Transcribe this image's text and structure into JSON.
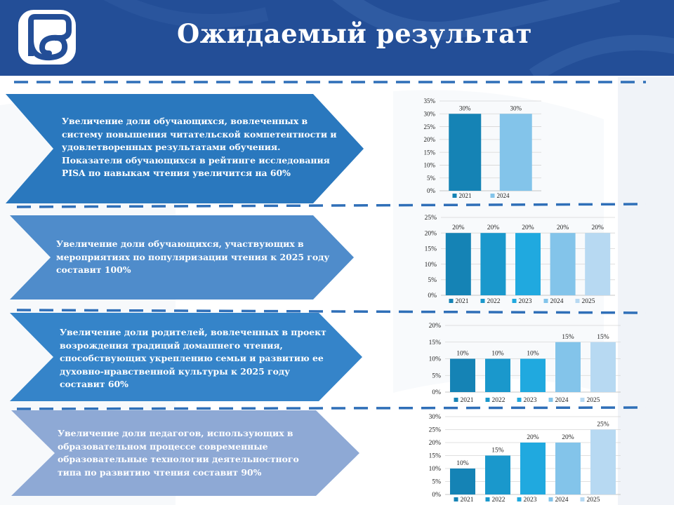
{
  "header": {
    "title": "Ожидаемый результат"
  },
  "colors": {
    "header_bg": "#234e97",
    "dashes": "#2f6fb8",
    "arrow1": "#2a78be",
    "arrow2": "#4f8ccb",
    "arrow3": "#3584c9",
    "arrow4": "#8ea9d5",
    "year_2021": "#1583b5",
    "year_2022": "#1a98cc",
    "year_2023": "#20a9df",
    "year_2024": "#83c4ea",
    "year_2025": "#b7d9f2"
  },
  "results": [
    {
      "text": "Увеличение доли обучающихся,  вовлеченных в систему повышения читательской компетентности и удовлетворенных результатами обучения. Показатели обучающихся  в рейтинге исследования PISA по навыкам чтения  увеличится  на 60%"
    },
    {
      "text": "Увеличение доли обучающихся,  участвующих  в мероприятиях по популяризации  чтения к 2025 году составит  100%"
    },
    {
      "text": "Увеличение доли родителей, вовлеченных в проект возрождения традиций  домашнего чтения, способствующих  укреплению семьи и развитию ее духовно-нравственной культуры к 2025 году составит 60%"
    },
    {
      "text": "Увеличение доли педагогов, использующих  в образовательном процессе  современные образовательные технологии деятельностного типа по развитию  чтения составит 90%"
    }
  ],
  "chart_data": [
    {
      "type": "bar",
      "categories": [
        "2021",
        "2024"
      ],
      "values": [
        30,
        30
      ],
      "value_labels": [
        "30%",
        "30%"
      ],
      "ylim": [
        0,
        35
      ],
      "yticks": [
        "0%",
        "5%",
        "10%",
        "15%",
        "20%",
        "25%",
        "30%",
        "35%"
      ],
      "grid": true,
      "legend": "bottom"
    },
    {
      "type": "bar",
      "categories": [
        "2021",
        "2022",
        "2023",
        "2024",
        "2025"
      ],
      "values": [
        20,
        20,
        20,
        20,
        20
      ],
      "value_labels": [
        "20%",
        "20%",
        "20%",
        "20%",
        "20%"
      ],
      "ylim": [
        0,
        25
      ],
      "yticks": [
        "0%",
        "5%",
        "10%",
        "15%",
        "20%",
        "25%"
      ],
      "grid": true,
      "legend": "bottom"
    },
    {
      "type": "bar",
      "categories": [
        "2021",
        "2022",
        "2023",
        "2024",
        "2025"
      ],
      "values": [
        10,
        10,
        10,
        15,
        15
      ],
      "value_labels": [
        "10%",
        "10%",
        "10%",
        "15%",
        "15%"
      ],
      "ylim": [
        0,
        20
      ],
      "yticks": [
        "0%",
        "5%",
        "10%",
        "15%",
        "20%"
      ],
      "grid": true,
      "legend": "bottom"
    },
    {
      "type": "bar",
      "categories": [
        "2021",
        "2022",
        "2023",
        "2024",
        "2025"
      ],
      "values": [
        10,
        15,
        20,
        20,
        25
      ],
      "value_labels": [
        "10%",
        "15%",
        "20%",
        "20%",
        "25%"
      ],
      "ylim": [
        0,
        30
      ],
      "yticks": [
        "0%",
        "5%",
        "10%",
        "15%",
        "20%",
        "25%",
        "30%"
      ],
      "grid": true,
      "legend": "bottom"
    }
  ]
}
